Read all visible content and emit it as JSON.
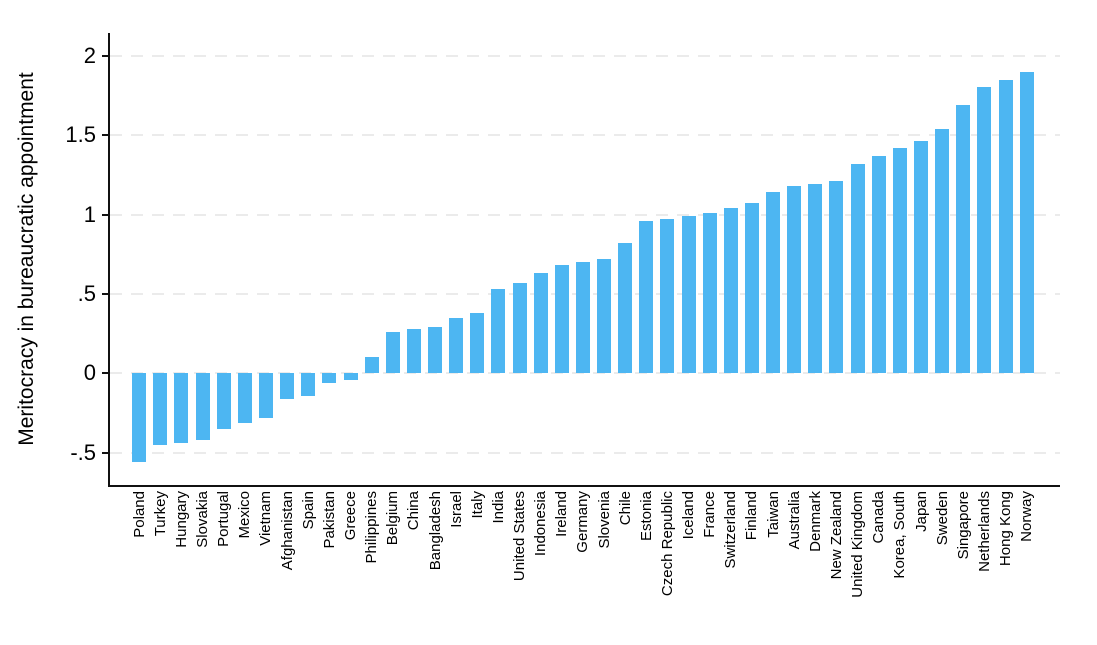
{
  "chart_data": {
    "type": "bar",
    "title": "",
    "ylabel": "Meritocracy in bureaucratic appointment",
    "xlabel": "",
    "categories": [
      "Poland",
      "Turkey",
      "Hungary",
      "Slovakia",
      "Portugal",
      "Mexico",
      "Vietnam",
      "Afghanistan",
      "Spain",
      "Pakistan",
      "Greece",
      "Philippines",
      "Belgium",
      "China",
      "Bangladesh",
      "Israel",
      "Italy",
      "India",
      "United States",
      "Indonesia",
      "Ireland",
      "Germany",
      "Slovenia",
      "Chile",
      "Estonia",
      "Czech Republic",
      "Iceland",
      "France",
      "Switzerland",
      "Finland",
      "Taiwan",
      "Australia",
      "Denmark",
      "New Zealand",
      "United Kingdom",
      "Canada",
      "Korea, South",
      "Japan",
      "Sweden",
      "Singapore",
      "Netherlands",
      "Hong Kong",
      "Norway"
    ],
    "values": [
      -0.56,
      -0.45,
      -0.44,
      -0.42,
      -0.35,
      -0.31,
      -0.28,
      -0.16,
      -0.14,
      -0.06,
      -0.04,
      0.1,
      0.26,
      0.28,
      0.29,
      0.35,
      0.38,
      0.53,
      0.57,
      0.63,
      0.68,
      0.7,
      0.72,
      0.82,
      0.96,
      0.97,
      0.99,
      1.01,
      1.04,
      1.07,
      1.14,
      1.18,
      1.19,
      1.21,
      1.32,
      1.37,
      1.42,
      1.46,
      1.54,
      1.69,
      1.8,
      1.85,
      1.9
    ],
    "y_ticks": [
      {
        "value": 2,
        "label": "2"
      },
      {
        "value": 1.5,
        "label": "1.5"
      },
      {
        "value": 1,
        "label": "1"
      },
      {
        "value": 0.5,
        "label": ".5"
      },
      {
        "value": 0,
        "label": "0"
      },
      {
        "value": -0.5,
        "label": "-.5"
      }
    ],
    "ylim": [
      -0.7,
      2.14
    ],
    "grid": "horizontal-dashed",
    "legend": "none",
    "bar_color": "#4db6f2",
    "grid_color": "#ebebeb",
    "axis_color": "#111111"
  }
}
